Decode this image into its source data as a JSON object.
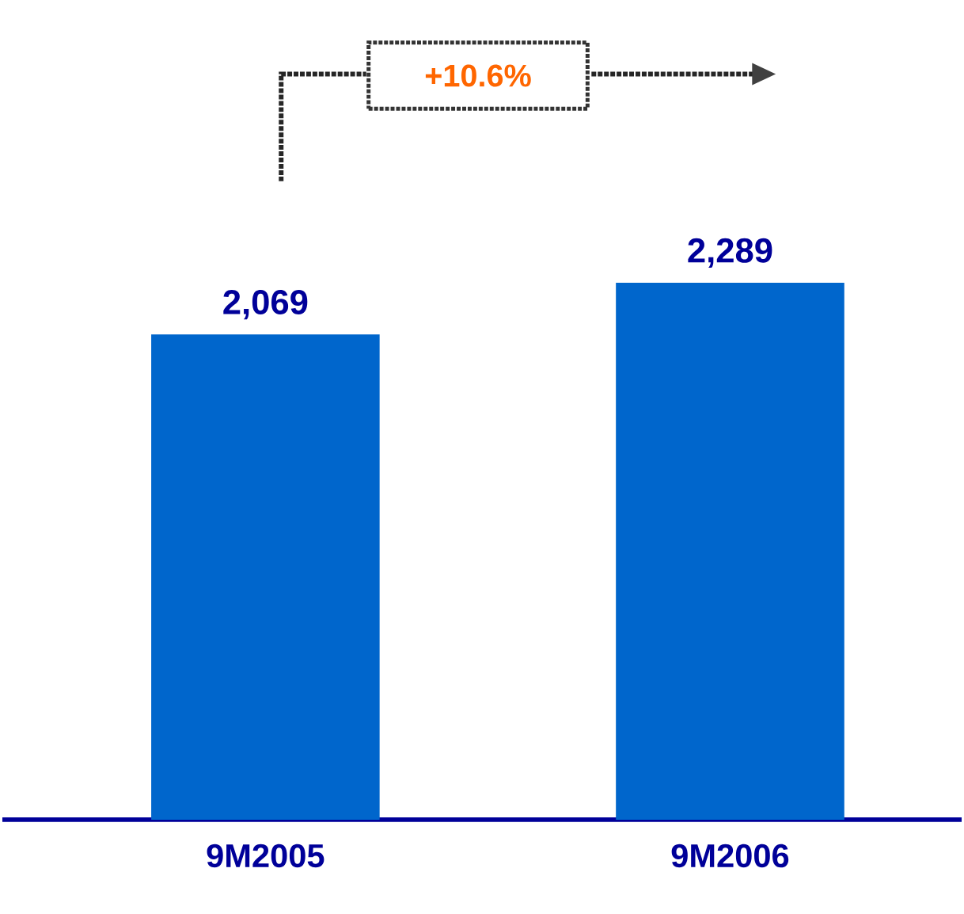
{
  "chart_data": {
    "type": "bar",
    "categories": [
      "9M2005",
      "9M2006"
    ],
    "values": [
      2069,
      2289
    ],
    "value_labels": [
      "2,069",
      "2,289"
    ],
    "color": "#0066cc",
    "annotations": [
      "+10.6%"
    ]
  }
}
